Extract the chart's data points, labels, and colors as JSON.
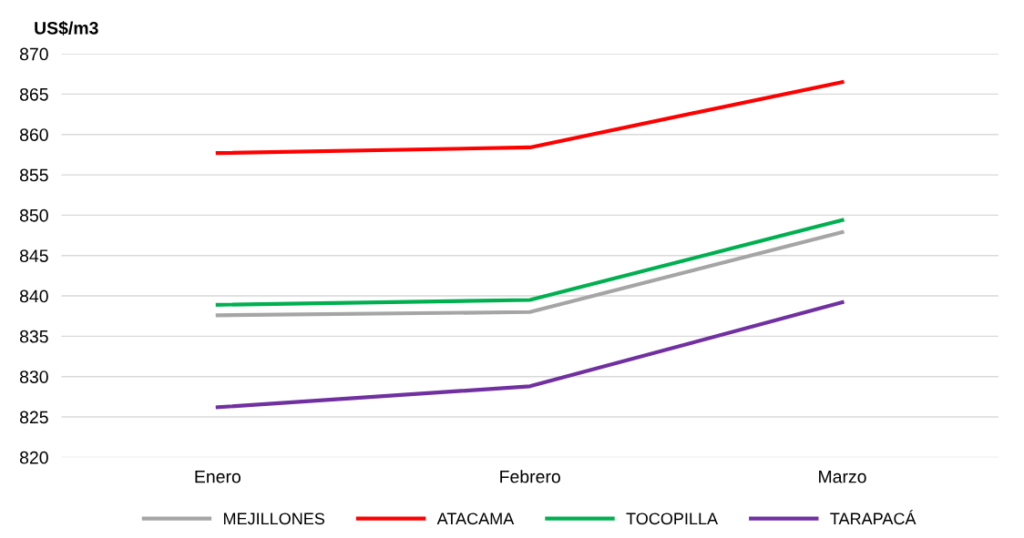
{
  "chart_data": {
    "type": "line",
    "ylabel": "US$/m3",
    "categories": [
      "Enero",
      "Febrero",
      "Marzo"
    ],
    "series": [
      {
        "name": "MEJILLONES",
        "color": "#a5a5a5",
        "values": [
          837.6,
          838.0,
          847.9
        ]
      },
      {
        "name": "ATACAMA",
        "color": "#ff0000",
        "values": [
          857.7,
          858.4,
          866.5
        ]
      },
      {
        "name": "TOCOPILLA",
        "color": "#00b050",
        "values": [
          838.9,
          839.5,
          849.4
        ]
      },
      {
        "name": "TARAPACÁ",
        "color": "#7030a0",
        "values": [
          826.2,
          828.8,
          839.2
        ]
      }
    ],
    "ylim": [
      820,
      870
    ],
    "yticks": [
      820,
      825,
      830,
      835,
      840,
      845,
      850,
      855,
      860,
      865,
      870
    ],
    "grid": "y",
    "legend": "bottom",
    "marker": "none",
    "line_style": "solid"
  }
}
